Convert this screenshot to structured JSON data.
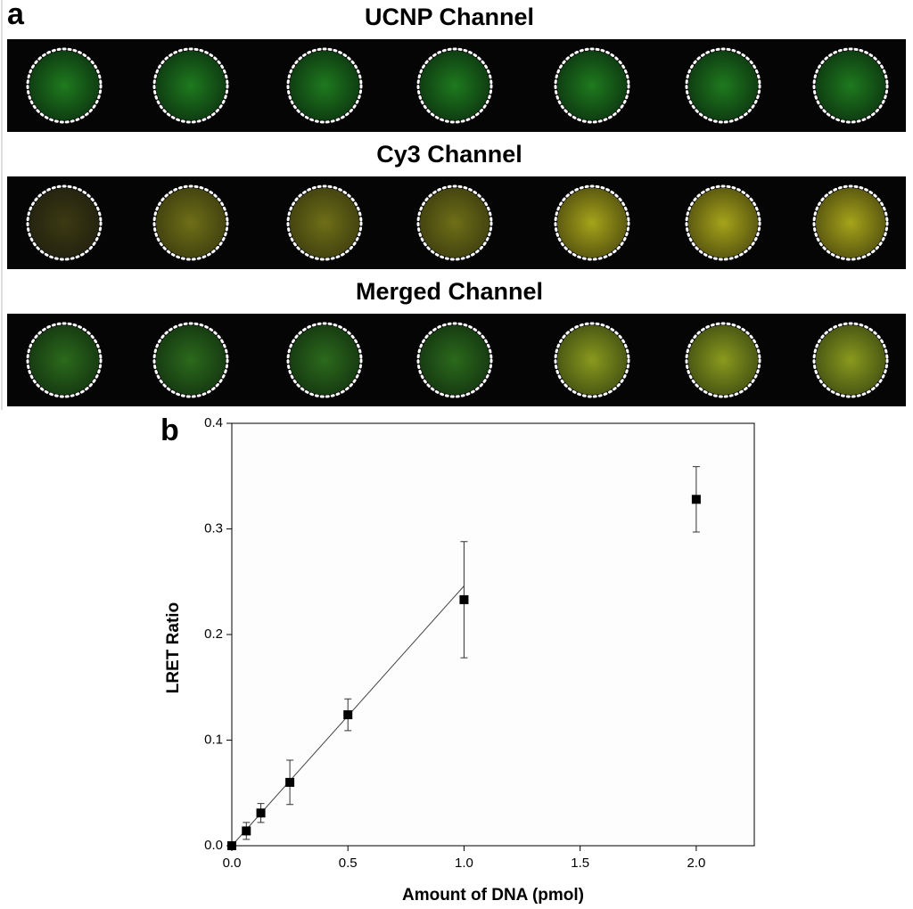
{
  "panels": {
    "a": "a",
    "b": "b"
  },
  "strips": [
    "UCNP Channel",
    "Cy3 Channel",
    "Merged Channel"
  ],
  "chart_data": {
    "type": "scatter",
    "x_label": "Amount of DNA (pmol)",
    "y_label": "LRET Ratio",
    "series": [
      {
        "color": "#000000",
        "x": [
          0,
          0.0625,
          0.125,
          0.25,
          0.5,
          1.0,
          2.0
        ],
        "values": [
          0,
          0.014,
          0.031,
          0.06,
          0.124,
          0.233,
          0.328
        ],
        "errors": [
          0,
          0.008,
          0.009,
          0.021,
          0.015,
          0.055,
          0.031
        ]
      }
    ],
    "fit_line": {
      "x": [
        0,
        1.0
      ],
      "y": [
        0,
        0.246
      ]
    },
    "xlim": [
      0,
      2.25
    ],
    "ylim": [
      0,
      0.4
    ],
    "xticks": [
      {
        "value": 0,
        "label": "0.0"
      },
      {
        "value": 0.5,
        "label": "0.5"
      },
      {
        "value": 1,
        "label": "1.0"
      },
      {
        "value": 1.5,
        "label": "1.5"
      },
      {
        "value": 2,
        "label": "2.0"
      }
    ],
    "yticks": [
      {
        "value": 0,
        "label": "0.0"
      },
      {
        "value": 0.1,
        "label": "0.1"
      },
      {
        "value": 0.2,
        "label": "0.2"
      },
      {
        "value": 0.3,
        "label": "0.3"
      },
      {
        "value": 0.4,
        "label": "0.4"
      }
    ]
  }
}
